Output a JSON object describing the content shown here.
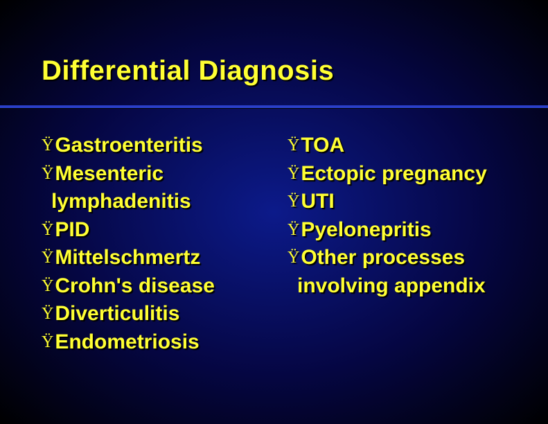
{
  "title": "Differential Diagnosis",
  "colors": {
    "text": "#ffff33",
    "background_center": "#0c1a8a",
    "background_edge": "#000000",
    "divider": "#2a3fc8",
    "shadow": "#000000"
  },
  "typography": {
    "title_fontsize": 40,
    "item_fontsize": 30,
    "bullet_fontsize": 24,
    "font_family": "Arial",
    "font_weight": "bold"
  },
  "bullet_glyph": "Ÿ",
  "left_column": [
    {
      "text": "Gastroenteritis",
      "continuation": null
    },
    {
      "text": "Mesenteric",
      "continuation": "lymphadenitis"
    },
    {
      "text": "PID",
      "continuation": null
    },
    {
      "text": "Mittelschmertz",
      "continuation": null
    },
    {
      "text": "Crohn's disease",
      "continuation": null
    },
    {
      "text": "Diverticulitis",
      "continuation": null
    },
    {
      "text": "Endometriosis",
      "continuation": null
    }
  ],
  "right_column": [
    {
      "text": "TOA",
      "continuation": null
    },
    {
      "text": "Ectopic pregnancy",
      "continuation": null
    },
    {
      "text": "UTI",
      "continuation": null
    },
    {
      "text": "Pyelonepritis",
      "continuation": null
    },
    {
      "text": "Other processes",
      "continuation": "involving appendix"
    }
  ]
}
